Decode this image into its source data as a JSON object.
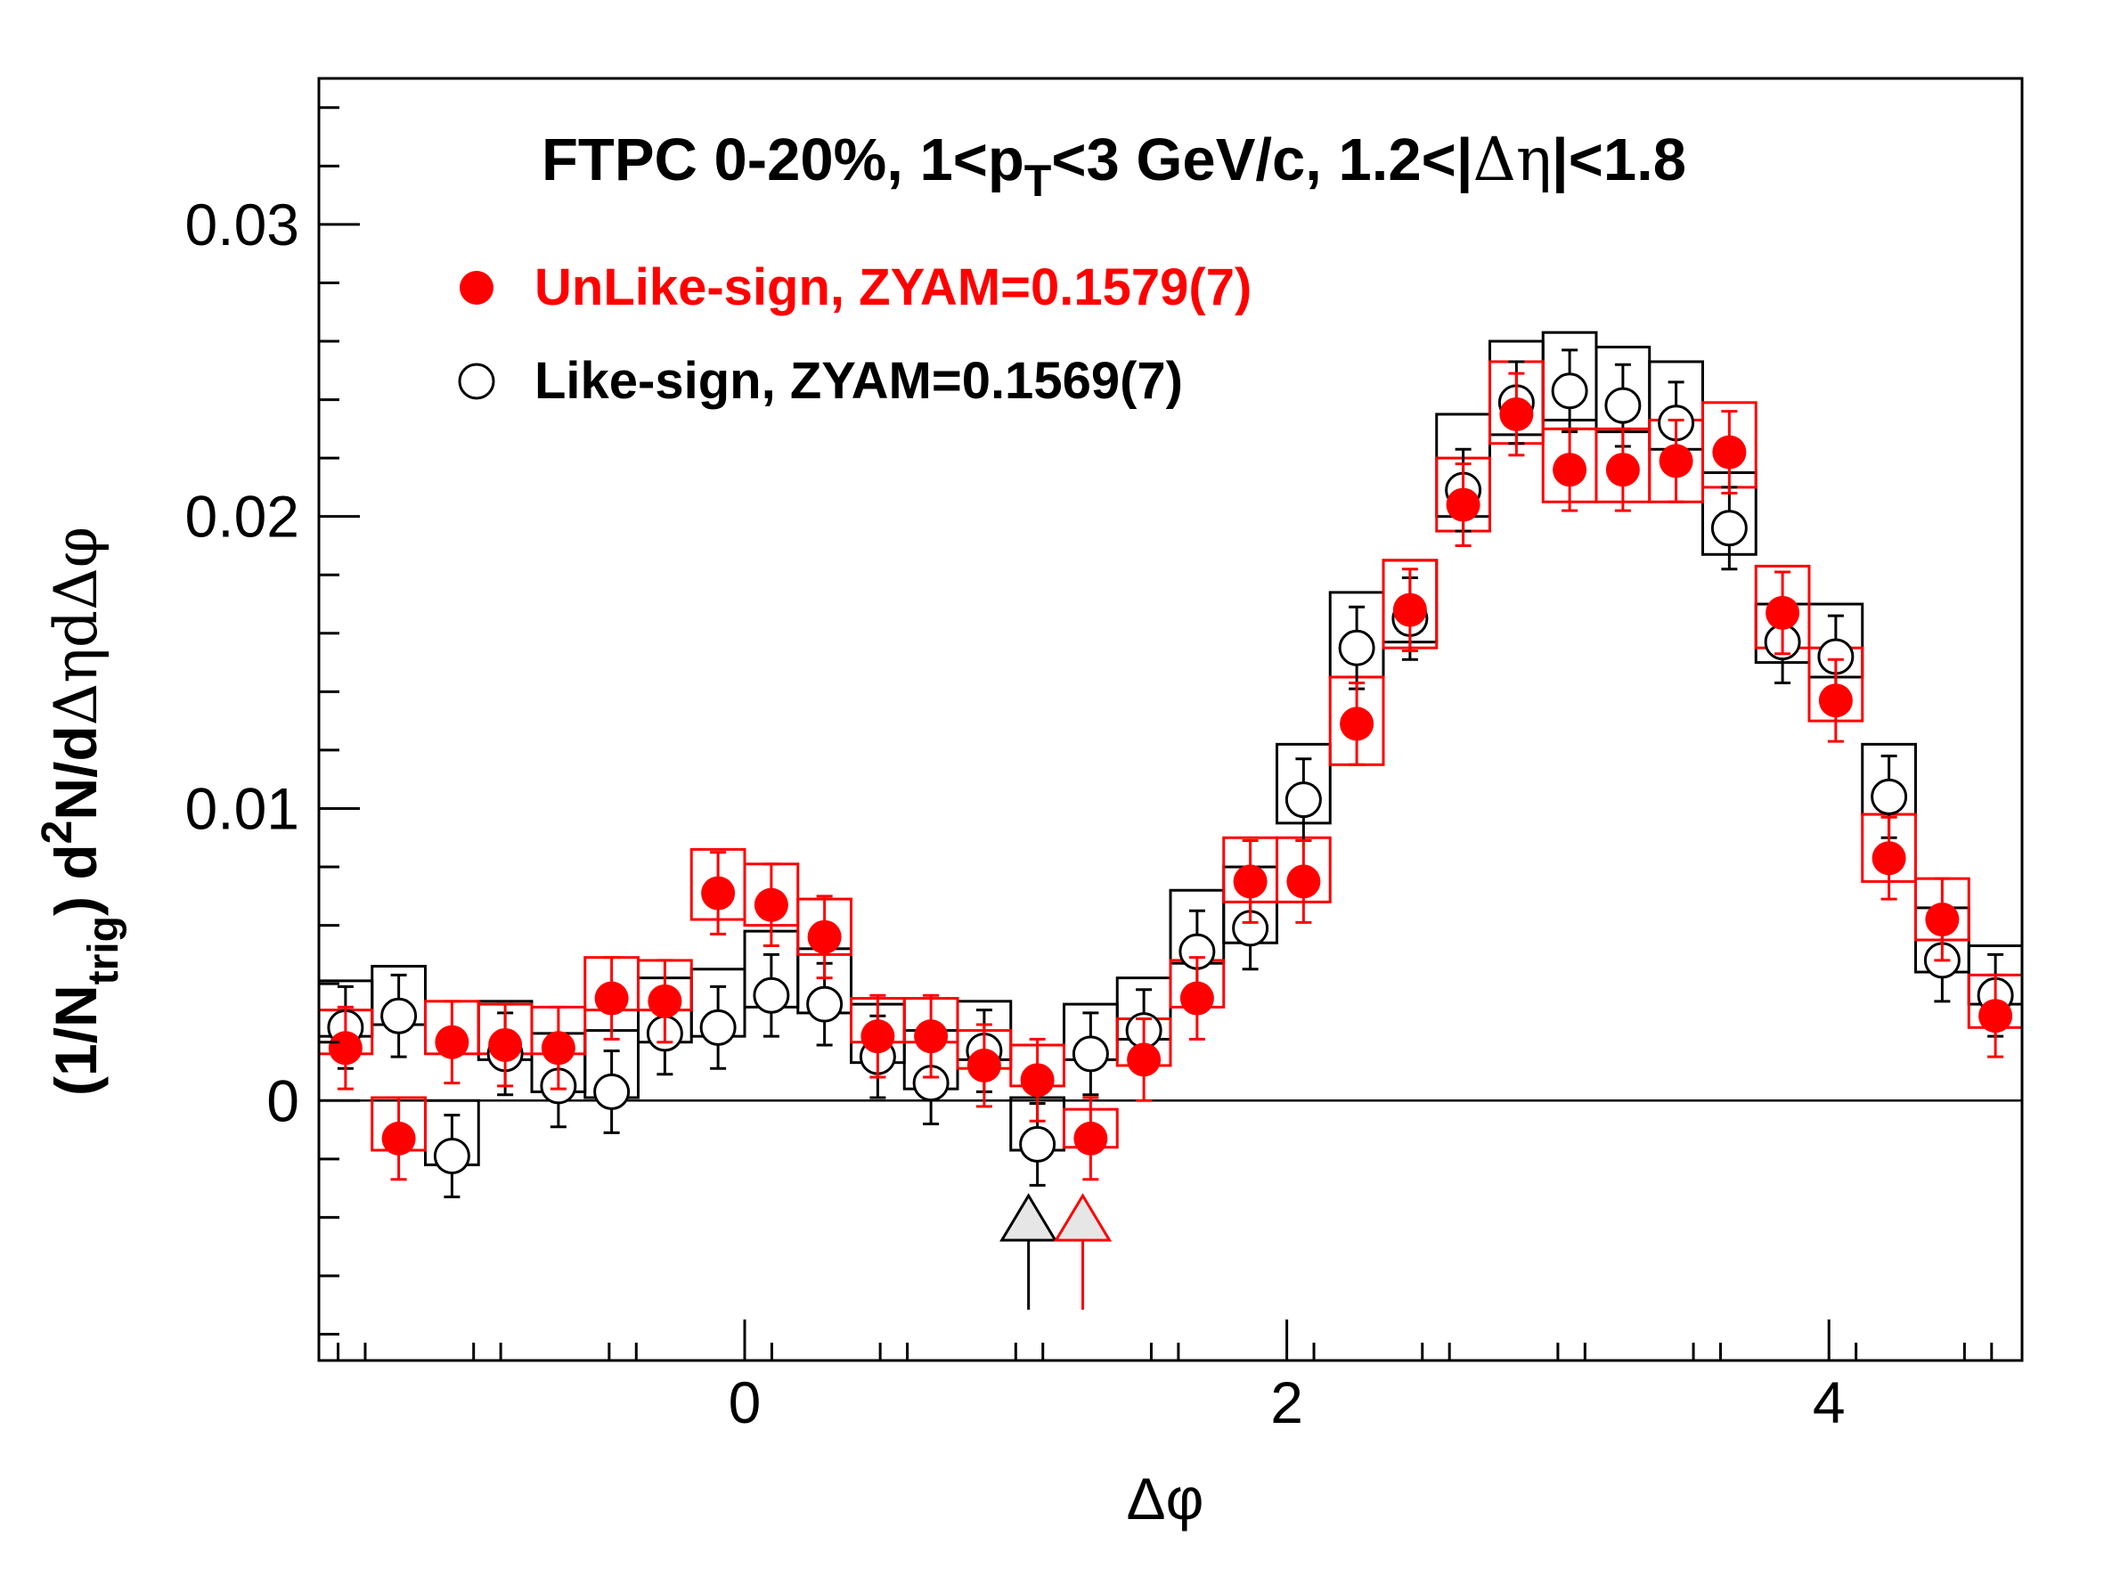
{
  "chart_data": {
    "type": "scatter",
    "title": {
      "prefix": "FTPC 0-20%, 1<p",
      "sub": "T",
      "mid": "<3 GeV/c, 1.2<|",
      "symbol1": "Δη",
      "suffix": "|<1.8"
    },
    "xlabel": "Δφ",
    "ylabel": {
      "p1": "(1/N",
      "sub": "trig",
      "p2": ") d",
      "sup": "2",
      "p3": "N/d",
      "sym": "ΔηdΔφ"
    },
    "xlim": [
      -1.5708,
      4.7124
    ],
    "ylim": [
      -0.0089,
      0.035
    ],
    "x_ticks": [
      0,
      2,
      4
    ],
    "x_tick_labels": [
      "0",
      "2",
      "4"
    ],
    "y_ticks": [
      0,
      0.01,
      0.02,
      0.03
    ],
    "y_tick_labels": [
      "0",
      "0.01",
      "0.02",
      "0.03"
    ],
    "bin_width": 0.1963,
    "x": [
      -1.4726,
      -1.2763,
      -1.0799,
      -0.8836,
      -0.6872,
      -0.4909,
      -0.2945,
      -0.0982,
      0.0982,
      0.2945,
      0.4909,
      0.6872,
      0.8836,
      1.0799,
      1.2763,
      1.4726,
      1.669,
      1.8653,
      2.0617,
      2.258,
      2.4544,
      2.6507,
      2.8471,
      3.0434,
      3.2398,
      3.4361,
      3.6325,
      3.8288,
      4.0252,
      4.2215,
      4.4179,
      4.6142
    ],
    "series": [
      {
        "name": "UnLike-sign, ZYAM=0.1579(7)",
        "color": "#ff0000",
        "marker": "filled-circle",
        "values": [
          0.0018,
          -0.0013,
          0.002,
          0.0019,
          0.0018,
          0.0035,
          0.0034,
          0.0071,
          0.0067,
          0.0056,
          0.0022,
          0.0022,
          0.0012,
          0.0007,
          -0.0013,
          0.0014,
          0.0035,
          0.0075,
          0.0075,
          0.0129,
          0.0168,
          0.0204,
          0.0235,
          0.0216,
          0.0216,
          0.0219,
          0.0222,
          0.0167,
          0.0137,
          0.0083,
          0.0062,
          0.0029
        ],
        "errors": [
          0.0014,
          0.0014,
          0.0014,
          0.0014,
          0.0014,
          0.0014,
          0.0014,
          0.0014,
          0.0014,
          0.0014,
          0.0014,
          0.0014,
          0.0014,
          0.0014,
          0.0014,
          0.0014,
          0.0014,
          0.0014,
          0.0014,
          0.0014,
          0.0014,
          0.0014,
          0.0014,
          0.0014,
          0.0014,
          0.0014,
          0.0014,
          0.0014,
          0.0014,
          0.0014,
          0.0014,
          0.0014
        ],
        "sys_low": [
          0.0016,
          -0.0017,
          0.0016,
          0.0016,
          0.0016,
          0.0031,
          0.0031,
          0.0062,
          0.006,
          0.005,
          0.002,
          0.002,
          0.0011,
          0.0005,
          -0.0016,
          0.0012,
          0.0032,
          0.0068,
          0.0068,
          0.0115,
          0.0155,
          0.0195,
          0.0225,
          0.0205,
          0.0205,
          0.0205,
          0.021,
          0.0155,
          0.013,
          0.0075,
          0.0055,
          0.0025
        ],
        "sys_high": [
          0.0031,
          0.0001,
          0.0034,
          0.0033,
          0.0032,
          0.0049,
          0.0048,
          0.0086,
          0.0081,
          0.0069,
          0.0035,
          0.0035,
          0.0024,
          0.0019,
          -0.0003,
          0.0028,
          0.0048,
          0.009,
          0.009,
          0.0145,
          0.0185,
          0.022,
          0.0253,
          0.023,
          0.023,
          0.0233,
          0.0239,
          0.0183,
          0.0155,
          0.0098,
          0.0076,
          0.0043
        ]
      },
      {
        "name": "Like-sign, ZYAM=0.1569(7)",
        "color": "#000000",
        "marker": "open-circle",
        "values": [
          0.0025,
          0.0029,
          -0.0019,
          0.0016,
          0.0005,
          0.0003,
          0.0023,
          0.0025,
          0.0036,
          0.0033,
          0.0015,
          0.0006,
          0.0017,
          -0.0015,
          0.0016,
          0.0024,
          0.0051,
          0.0059,
          0.0103,
          0.0155,
          0.0165,
          0.0209,
          0.0239,
          0.0243,
          0.0238,
          0.0232,
          0.0196,
          0.0157,
          0.0152,
          0.0104,
          0.0048,
          0.0036
        ],
        "errors": [
          0.0014,
          0.0014,
          0.0014,
          0.0014,
          0.0014,
          0.0014,
          0.0014,
          0.0014,
          0.0014,
          0.0014,
          0.0014,
          0.0014,
          0.0014,
          0.0014,
          0.0014,
          0.0014,
          0.0014,
          0.0014,
          0.0014,
          0.0014,
          0.0014,
          0.0014,
          0.0014,
          0.0014,
          0.0014,
          0.0014,
          0.0014,
          0.0014,
          0.0014,
          0.0014,
          0.0014,
          0.0014
        ],
        "sys_low": [
          0.0022,
          0.0026,
          -0.0022,
          0.0014,
          0.0003,
          0.0001,
          0.002,
          0.0022,
          0.0032,
          0.003,
          0.0013,
          0.0004,
          0.0014,
          -0.0017,
          0.0014,
          0.0021,
          0.0047,
          0.0054,
          0.0095,
          0.0145,
          0.0157,
          0.02,
          0.0228,
          0.0233,
          0.0229,
          0.0223,
          0.0187,
          0.015,
          0.0145,
          0.0098,
          0.0044,
          0.0033
        ],
        "sys_high": [
          0.0041,
          0.0046,
          0.0,
          0.0034,
          0.0023,
          0.0024,
          0.0042,
          0.0045,
          0.0058,
          0.0052,
          0.0033,
          0.0024,
          0.0034,
          0.0001,
          0.0033,
          0.0042,
          0.0072,
          0.008,
          0.0122,
          0.0174,
          0.0185,
          0.0235,
          0.026,
          0.0263,
          0.0258,
          0.0253,
          0.0215,
          0.017,
          0.017,
          0.0122,
          0.0066,
          0.0053
        ]
      }
    ],
    "arrows": [
      {
        "x": 1.0472,
        "color": "#000000",
        "fill": "#e6e6e6"
      },
      {
        "x": 1.2472,
        "color": "#ff0000",
        "fill": "#e6e6e6"
      }
    ],
    "zero_line": true,
    "grid": false,
    "legend_position": "top-left"
  }
}
